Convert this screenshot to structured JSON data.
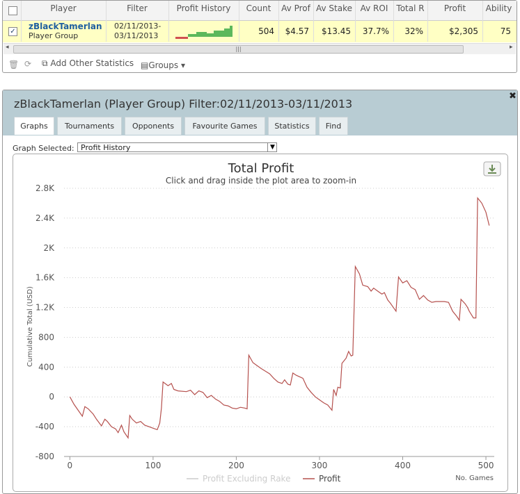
{
  "table": {
    "columns": [
      "Player",
      "Filter",
      "Profit History",
      "Count",
      "Av Prof",
      "Av Stake",
      "Av ROI",
      "Total R",
      "Profit",
      "Ability"
    ],
    "rows": [
      {
        "player": "zBlackTamerlan",
        "group": "Player Group",
        "filter": [
          "02/11/2013-",
          "03/11/2013"
        ],
        "cells": [
          "504",
          "$4.57",
          "$13.45",
          "37.7%",
          "32%",
          "$2,305",
          "75"
        ]
      }
    ]
  },
  "toolbar": {
    "add": "Add Other Statistics",
    "groups": "Groups"
  },
  "panel": {
    "title": "zBlackTamerlan (Player Group) Filter:02/11/2013-03/11/2013",
    "tabs": [
      "Graphs",
      "Tournaments",
      "Opponents",
      "Favourite Games",
      "Statistics",
      "Find"
    ],
    "graph_selected_label": "Graph Selected:",
    "graph_selected": "Profit History"
  },
  "chart_data": {
    "type": "line",
    "title": "Total Profit",
    "subtitle": "Click and drag inside the plot area to zoom-in",
    "y_label": "Cumulative Total (USD)",
    "x_label": "No. Games",
    "x": [
      0,
      5,
      10,
      15,
      18,
      22,
      28,
      32,
      38,
      42,
      45,
      50,
      55,
      58,
      62,
      65,
      70,
      72,
      75,
      80,
      85,
      90,
      95,
      100,
      105,
      108,
      110,
      112,
      118,
      122,
      125,
      130,
      140,
      145,
      150,
      155,
      160,
      165,
      170,
      175,
      180,
      185,
      190,
      195,
      200,
      205,
      210,
      213,
      215,
      220,
      225,
      230,
      240,
      245,
      250,
      255,
      258,
      262,
      265,
      268,
      272,
      280,
      285,
      290,
      295,
      300,
      305,
      310,
      315,
      317,
      320,
      322,
      325,
      327,
      332,
      335,
      338,
      340,
      343,
      348,
      352,
      358,
      362,
      365,
      370,
      375,
      378,
      382,
      385,
      390,
      392,
      395,
      400,
      405,
      410,
      415,
      420,
      425,
      430,
      435,
      440,
      450,
      455,
      460,
      465,
      468,
      470,
      475,
      478,
      480,
      485,
      488,
      490,
      495,
      500,
      504
    ],
    "series": [
      {
        "name": "Profit Excluding Rake",
        "color": "#cccccc",
        "hidden": true
      },
      {
        "name": "Profit",
        "color": "#b5504d",
        "values": [
          0,
          -100,
          -180,
          -260,
          -130,
          -160,
          -230,
          -300,
          -390,
          -300,
          -330,
          -400,
          -430,
          -480,
          -380,
          -470,
          -550,
          -250,
          -300,
          -350,
          -330,
          -380,
          -400,
          -420,
          -440,
          -350,
          -150,
          200,
          150,
          180,
          100,
          80,
          70,
          90,
          30,
          80,
          60,
          -10,
          20,
          -30,
          -60,
          -110,
          -120,
          -150,
          -160,
          -140,
          -150,
          -160,
          560,
          460,
          420,
          380,
          310,
          250,
          200,
          180,
          230,
          170,
          160,
          320,
          290,
          250,
          130,
          60,
          0,
          -40,
          -80,
          -110,
          -180,
          100,
          20,
          130,
          120,
          450,
          520,
          610,
          550,
          560,
          1750,
          1650,
          1500,
          1480,
          1420,
          1460,
          1420,
          1380,
          1400,
          1300,
          1260,
          1180,
          1150,
          1610,
          1530,
          1560,
          1470,
          1440,
          1310,
          1360,
          1300,
          1270,
          1280,
          1280,
          1270,
          1150,
          1080,
          1030,
          1310,
          1250,
          1200,
          1150,
          1060,
          1060,
          2670,
          2600,
          2480,
          2300
        ]
      }
    ],
    "xlim": [
      -7,
      510
    ],
    "xticks": [
      0,
      100,
      200,
      300,
      400,
      500
    ],
    "ylim": [
      -800,
      2800
    ],
    "yticks": [
      -800,
      -400,
      0,
      400,
      800,
      {
        "value": 1200,
        "label": "1.2K"
      },
      {
        "value": 1600,
        "label": "1.6K"
      },
      {
        "value": 2000,
        "label": "2K"
      },
      {
        "value": 2400,
        "label": "2.4K"
      },
      {
        "value": 2800,
        "label": "2.8K"
      }
    ],
    "grid": true
  }
}
